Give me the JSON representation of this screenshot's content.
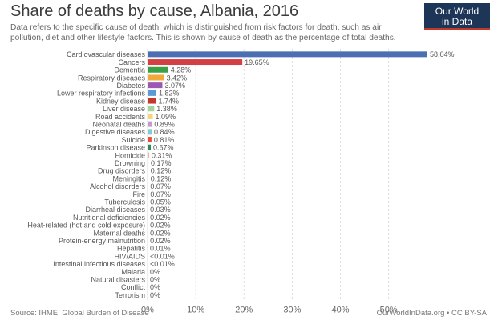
{
  "header": {
    "title": "Share of deaths by cause, Albania, 2016",
    "subtitle": "Data refers to the specific cause of death, which is distinguished from risk factors for death, such as air pollution, diet and other lifestyle factors. This is shown by cause of death as the percentage of total deaths."
  },
  "logo": {
    "line1": "Our World",
    "line2": "in Data"
  },
  "footer": {
    "source": "Source: IHME, Global Burden of Disease",
    "credit": "OurWorldInData.org • CC BY-SA"
  },
  "chart_data": {
    "type": "bar",
    "orientation": "horizontal",
    "title": "Share of deaths by cause, Albania, 2016",
    "xlim": [
      0,
      58.04
    ],
    "xticks": [
      0,
      10,
      20,
      30,
      40,
      50
    ],
    "xtick_labels": [
      "0%",
      "10%",
      "20%",
      "30%",
      "40%",
      "50%"
    ],
    "grid": true,
    "categories": [
      {
        "label": "Cardiovascular diseases",
        "value": 58.04,
        "display": "58.04%",
        "color": "#4c6fb3"
      },
      {
        "label": "Cancers",
        "value": 19.65,
        "display": "19.65%",
        "color": "#d33f43"
      },
      {
        "label": "Dementia",
        "value": 4.28,
        "display": "4.28%",
        "color": "#3aa046"
      },
      {
        "label": "Respiratory diseases",
        "value": 3.42,
        "display": "3.42%",
        "color": "#f2a93b"
      },
      {
        "label": "Diabetes",
        "value": 3.07,
        "display": "3.07%",
        "color": "#9b59b6"
      },
      {
        "label": "Lower respiratory infections",
        "value": 1.82,
        "display": "1.82%",
        "color": "#5b9bd5"
      },
      {
        "label": "Kidney disease",
        "value": 1.74,
        "display": "1.74%",
        "color": "#c0392b"
      },
      {
        "label": "Liver disease",
        "value": 1.38,
        "display": "1.38%",
        "color": "#a3d39c"
      },
      {
        "label": "Road accidents",
        "value": 1.09,
        "display": "1.09%",
        "color": "#f7d57a"
      },
      {
        "label": "Neonatal deaths",
        "value": 0.89,
        "display": "0.89%",
        "color": "#c39bd3"
      },
      {
        "label": "Digestive diseases",
        "value": 0.84,
        "display": "0.84%",
        "color": "#7fcdcd"
      },
      {
        "label": "Suicide",
        "value": 0.81,
        "display": "0.81%",
        "color": "#e74c3c"
      },
      {
        "label": "Parkinson disease",
        "value": 0.67,
        "display": "0.67%",
        "color": "#2e8b57"
      },
      {
        "label": "Homicide",
        "value": 0.31,
        "display": "0.31%",
        "color": "#f4a582"
      },
      {
        "label": "Drowning",
        "value": 0.17,
        "display": "0.17%",
        "color": "#6a5acd"
      },
      {
        "label": "Drug disorders",
        "value": 0.12,
        "display": "0.12%",
        "color": "#bc8f8f"
      },
      {
        "label": "Meningitis",
        "value": 0.12,
        "display": "0.12%",
        "color": "#5f9ea0"
      },
      {
        "label": "Alcohol disorders",
        "value": 0.07,
        "display": "0.07%",
        "color": "#d2691e"
      },
      {
        "label": "Fire",
        "value": 0.07,
        "display": "0.07%",
        "color": "#ff8c00"
      },
      {
        "label": "Tuberculosis",
        "value": 0.05,
        "display": "0.05%",
        "color": "#8fbc8f"
      },
      {
        "label": "Diarrheal diseases",
        "value": 0.03,
        "display": "0.03%",
        "color": "#b8860b"
      },
      {
        "label": "Nutritional deficiencies",
        "value": 0.02,
        "display": "0.02%",
        "color": "#708090"
      },
      {
        "label": "Heat-related (hot and cold exposure)",
        "value": 0.02,
        "display": "0.02%",
        "color": "#cd5c5c"
      },
      {
        "label": "Maternal deaths",
        "value": 0.02,
        "display": "0.02%",
        "color": "#da70d6"
      },
      {
        "label": "Protein-energy malnutrition",
        "value": 0.02,
        "display": "0.02%",
        "color": "#4682b4"
      },
      {
        "label": "Hepatitis",
        "value": 0.01,
        "display": "0.01%",
        "color": "#9acd32"
      },
      {
        "label": "HIV/AIDS",
        "value": 0.005,
        "display": "<0.01%",
        "color": "#800000"
      },
      {
        "label": "Intestinal infectious diseases",
        "value": 0.005,
        "display": "<0.01%",
        "color": "#808000"
      },
      {
        "label": "Malaria",
        "value": 0,
        "display": "0%",
        "color": "#999999"
      },
      {
        "label": "Natural disasters",
        "value": 0,
        "display": "0%",
        "color": "#999999"
      },
      {
        "label": "Conflict",
        "value": 0,
        "display": "0%",
        "color": "#999999"
      },
      {
        "label": "Terrorism",
        "value": 0,
        "display": "0%",
        "color": "#999999"
      }
    ]
  }
}
